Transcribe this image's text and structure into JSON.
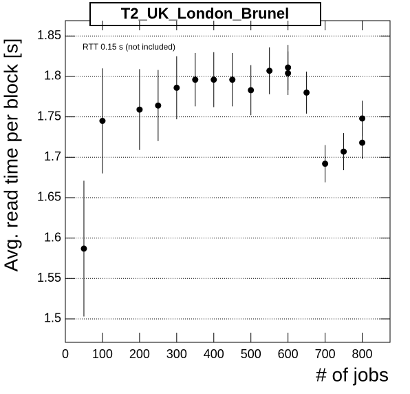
{
  "chart_data": {
    "type": "scatter",
    "title": "T2_UK_London_Brunel",
    "annotation": "RTT 0.15 s (not included)",
    "x_label": "# of jobs",
    "y_label": "Avg. read time per block [s]",
    "x": [
      50,
      100,
      200,
      250,
      300,
      350,
      400,
      450,
      500,
      550,
      600,
      600,
      650,
      700,
      750,
      800,
      800
    ],
    "values": [
      1.587,
      1.745,
      1.759,
      1.764,
      1.786,
      1.796,
      1.796,
      1.796,
      1.783,
      1.807,
      1.804,
      1.811,
      1.78,
      1.692,
      1.707,
      1.748,
      1.718
    ],
    "errors": [
      0.084,
      0.065,
      0.05,
      0.044,
      0.039,
      0.033,
      0.034,
      0.033,
      0.031,
      0.029,
      0.027,
      0.028,
      0.026,
      0.023,
      0.023,
      0.022,
      0.02
    ],
    "color": "#000000",
    "xlim": [
      0,
      875
    ],
    "ylim": [
      1.471,
      1.869
    ],
    "xticks": [
      0,
      100,
      200,
      300,
      400,
      500,
      600,
      700,
      800
    ],
    "yticks": [
      1.5,
      1.55,
      1.6,
      1.65,
      1.7,
      1.75,
      1.8,
      1.85
    ],
    "grid": true
  }
}
